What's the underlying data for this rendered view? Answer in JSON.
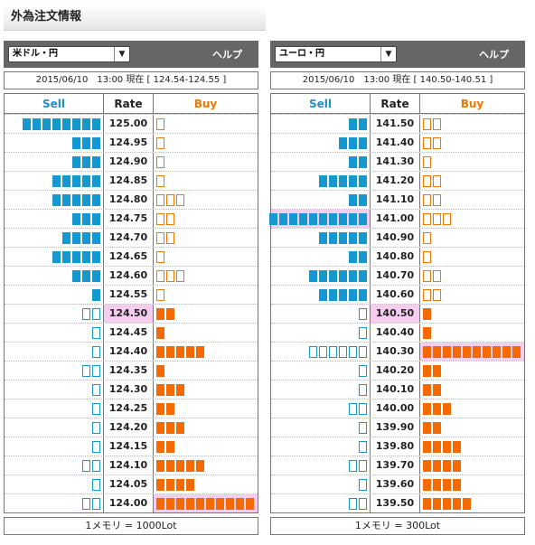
{
  "page_title": "外為注文情報",
  "panels": [
    {
      "id": "usdjpy",
      "currency_label": "米ドル・円",
      "help_label": "ヘルプ",
      "timestamp": "2015/06/10　13:00 現在 [ 124.54-124.55 ]",
      "header": {
        "sell": "Sell",
        "rate": "Rate",
        "buy": "Buy"
      },
      "unit_note": "1メモリ = 1000Lot",
      "rows": [
        {
          "rate": "125.00",
          "sell": 8,
          "sell_style": "filled",
          "buy": 1,
          "buy_style": "outline"
        },
        {
          "rate": "124.95",
          "sell": 3,
          "sell_style": "filled",
          "buy": 1,
          "buy_style": "outline"
        },
        {
          "rate": "124.90",
          "sell": 3,
          "sell_style": "filled",
          "buy": 1,
          "buy_style": "outline"
        },
        {
          "rate": "124.85",
          "sell": 5,
          "sell_style": "filled",
          "buy": 1,
          "buy_style": "outline"
        },
        {
          "rate": "124.80",
          "sell": 5,
          "sell_style": "filled",
          "buy": 3,
          "buy_style": "outline"
        },
        {
          "rate": "124.75",
          "sell": 3,
          "sell_style": "filled",
          "buy": 2,
          "buy_style": "outline"
        },
        {
          "rate": "124.70",
          "sell": 4,
          "sell_style": "filled",
          "buy": 2,
          "buy_style": "outline"
        },
        {
          "rate": "124.65",
          "sell": 5,
          "sell_style": "filled",
          "buy": 1,
          "buy_style": "outline"
        },
        {
          "rate": "124.60",
          "sell": 3,
          "sell_style": "filled",
          "buy": 3,
          "buy_style": "outline"
        },
        {
          "rate": "124.55",
          "sell": 1,
          "sell_style": "filled",
          "buy": 1,
          "buy_style": "outline"
        },
        {
          "rate": "124.50",
          "sell": 2,
          "sell_style": "outline",
          "buy": 2,
          "buy_style": "filled",
          "current": true
        },
        {
          "rate": "124.45",
          "sell": 1,
          "sell_style": "outline",
          "buy": 1,
          "buy_style": "filled"
        },
        {
          "rate": "124.40",
          "sell": 1,
          "sell_style": "outline",
          "buy": 5,
          "buy_style": "filled"
        },
        {
          "rate": "124.35",
          "sell": 2,
          "sell_style": "outline",
          "buy": 1,
          "buy_style": "filled"
        },
        {
          "rate": "124.30",
          "sell": 1,
          "sell_style": "outline",
          "buy": 3,
          "buy_style": "filled"
        },
        {
          "rate": "124.25",
          "sell": 1,
          "sell_style": "outline",
          "buy": 2,
          "buy_style": "filled"
        },
        {
          "rate": "124.20",
          "sell": 1,
          "sell_style": "outline",
          "buy": 3,
          "buy_style": "filled"
        },
        {
          "rate": "124.15",
          "sell": 1,
          "sell_style": "outline",
          "buy": 2,
          "buy_style": "filled"
        },
        {
          "rate": "124.10",
          "sell": 2,
          "sell_style": "outline",
          "buy": 5,
          "buy_style": "filled"
        },
        {
          "rate": "124.05",
          "sell": 1,
          "sell_style": "outline",
          "buy": 4,
          "buy_style": "filled"
        },
        {
          "rate": "124.00",
          "sell": 2,
          "sell_style": "outline",
          "buy": 10,
          "buy_style": "filled",
          "buy_highlight": true
        }
      ]
    },
    {
      "id": "eurjpy",
      "currency_label": "ユーロ・円",
      "help_label": "ヘルプ",
      "timestamp": "2015/06/10　13:00 現在 [ 140.50-140.51 ]",
      "header": {
        "sell": "Sell",
        "rate": "Rate",
        "buy": "Buy"
      },
      "unit_note": "1メモリ = 300Lot",
      "rows": [
        {
          "rate": "141.50",
          "sell": 2,
          "sell_style": "filled",
          "buy": 2,
          "buy_style": "outline"
        },
        {
          "rate": "141.40",
          "sell": 3,
          "sell_style": "filled",
          "buy": 2,
          "buy_style": "outline"
        },
        {
          "rate": "141.30",
          "sell": 2,
          "sell_style": "filled",
          "buy": 1,
          "buy_style": "outline"
        },
        {
          "rate": "141.20",
          "sell": 5,
          "sell_style": "filled",
          "buy": 2,
          "buy_style": "outline"
        },
        {
          "rate": "141.10",
          "sell": 2,
          "sell_style": "filled",
          "buy": 2,
          "buy_style": "outline"
        },
        {
          "rate": "141.00",
          "sell": 10,
          "sell_style": "filled",
          "buy": 3,
          "buy_style": "outline",
          "sell_highlight": true
        },
        {
          "rate": "140.90",
          "sell": 5,
          "sell_style": "filled",
          "buy": 1,
          "buy_style": "outline"
        },
        {
          "rate": "140.80",
          "sell": 2,
          "sell_style": "filled",
          "buy": 1,
          "buy_style": "outline"
        },
        {
          "rate": "140.70",
          "sell": 6,
          "sell_style": "filled",
          "buy": 2,
          "buy_style": "outline"
        },
        {
          "rate": "140.60",
          "sell": 5,
          "sell_style": "filled",
          "buy": 2,
          "buy_style": "outline"
        },
        {
          "rate": "140.50",
          "sell": 1,
          "sell_style": "outline",
          "buy": 1,
          "buy_style": "filled",
          "current": true
        },
        {
          "rate": "140.40",
          "sell": 1,
          "sell_style": "outline",
          "buy": 1,
          "buy_style": "filled"
        },
        {
          "rate": "140.30",
          "sell": 6,
          "sell_style": "outline",
          "buy": 10,
          "buy_style": "filled",
          "buy_highlight": true
        },
        {
          "rate": "140.20",
          "sell": 1,
          "sell_style": "outline",
          "buy": 2,
          "buy_style": "filled"
        },
        {
          "rate": "140.10",
          "sell": 1,
          "sell_style": "outline",
          "buy": 2,
          "buy_style": "filled"
        },
        {
          "rate": "140.00",
          "sell": 2,
          "sell_style": "outline",
          "buy": 3,
          "buy_style": "filled"
        },
        {
          "rate": "139.90",
          "sell": 1,
          "sell_style": "outline",
          "buy": 2,
          "buy_style": "filled"
        },
        {
          "rate": "139.80",
          "sell": 1,
          "sell_style": "outline",
          "buy": 4,
          "buy_style": "filled"
        },
        {
          "rate": "139.70",
          "sell": 2,
          "sell_style": "outline",
          "buy": 4,
          "buy_style": "filled"
        },
        {
          "rate": "139.60",
          "sell": 1,
          "sell_style": "outline",
          "buy": 4,
          "buy_style": "filled"
        },
        {
          "rate": "139.50",
          "sell": 2,
          "sell_style": "outline",
          "buy": 5,
          "buy_style": "filled"
        }
      ]
    }
  ]
}
